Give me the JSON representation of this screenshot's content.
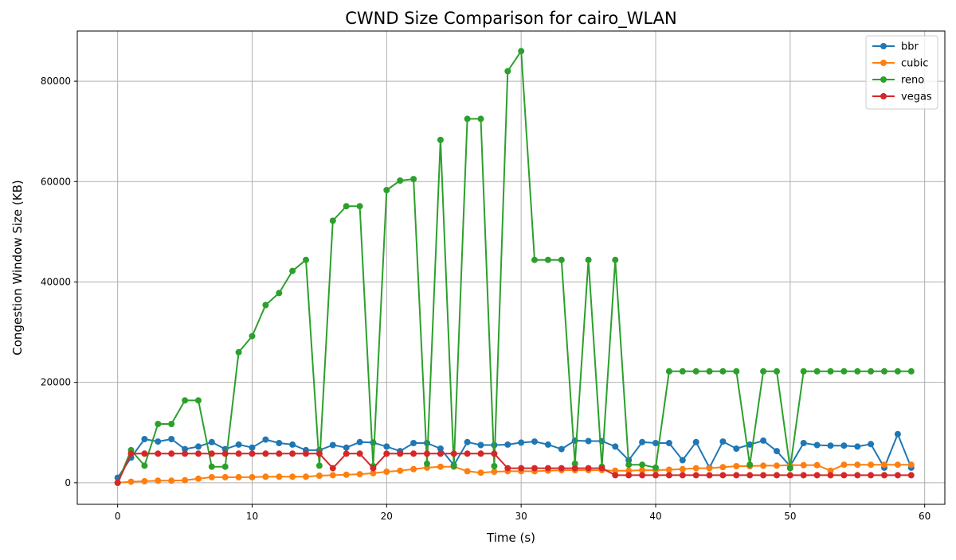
{
  "chart_data": {
    "type": "line",
    "title": "CWND Size Comparison for cairo_WLAN",
    "xlabel": "Time (s)",
    "ylabel": "Congestion Window Size (KB)",
    "xlim": [
      -3,
      61.5
    ],
    "ylim": [
      -4300,
      90000
    ],
    "xticks": [
      0,
      10,
      20,
      30,
      40,
      50,
      60
    ],
    "xtick_labels": [
      "0",
      "10",
      "20",
      "30",
      "40",
      "50",
      "60"
    ],
    "yticks": [
      0,
      20000,
      40000,
      60000,
      80000
    ],
    "ytick_labels": [
      "0",
      "20000",
      "40000",
      "60000",
      "80000"
    ],
    "grid": true,
    "legend_position": "top-right",
    "markers": true,
    "x": [
      0,
      1,
      2,
      3,
      4,
      5,
      6,
      7,
      8,
      9,
      10,
      11,
      12,
      13,
      14,
      15,
      16,
      17,
      18,
      19,
      20,
      21,
      22,
      23,
      24,
      25,
      26,
      27,
      28,
      29,
      30,
      31,
      32,
      33,
      34,
      35,
      36,
      37,
      38,
      39,
      40,
      41,
      42,
      43,
      44,
      45,
      46,
      47,
      48,
      49,
      50,
      51,
      52,
      53,
      54,
      55,
      56,
      57,
      58,
      59
    ],
    "series": [
      {
        "name": "bbr",
        "color": "#1f77b4",
        "values": [
          1000,
          5000,
          8700,
          8200,
          8700,
          6700,
          7200,
          8100,
          6700,
          7600,
          7000,
          8600,
          7900,
          7600,
          6500,
          6500,
          7500,
          7000,
          8100,
          8000,
          7200,
          6300,
          7900,
          7900,
          6800,
          3500,
          8100,
          7500,
          7500,
          7600,
          8000,
          8200,
          7600,
          6700,
          8400,
          8300,
          8300,
          7200,
          4500,
          8100,
          7900,
          7900,
          4500,
          8100,
          3000,
          8200,
          6800,
          7600,
          8400,
          6300,
          3300,
          7900,
          7500,
          7400,
          7400,
          7200,
          7700,
          3000,
          9700,
          3000
        ]
      },
      {
        "name": "cubic",
        "color": "#ff7f0e",
        "values": [
          0,
          200,
          300,
          400,
          400,
          500,
          800,
          1100,
          1100,
          1100,
          1100,
          1200,
          1200,
          1200,
          1200,
          1400,
          1500,
          1600,
          1700,
          1900,
          2200,
          2400,
          2700,
          3000,
          3200,
          3200,
          2300,
          2000,
          2200,
          2300,
          2300,
          2300,
          2400,
          2500,
          2500,
          2500,
          2500,
          2400,
          2400,
          2500,
          2500,
          2600,
          2700,
          2900,
          2900,
          3100,
          3300,
          3300,
          3400,
          3400,
          3500,
          3500,
          3500,
          2400,
          3600,
          3600,
          3600,
          3600,
          3600,
          3600
        ]
      },
      {
        "name": "reno",
        "color": "#2ca02c",
        "values": [
          0,
          6500,
          3400,
          11700,
          11700,
          16400,
          16400,
          3200,
          3200,
          26000,
          29200,
          35400,
          37800,
          42200,
          44400,
          3400,
          52200,
          55100,
          55100,
          3300,
          58300,
          60200,
          60500,
          3800,
          68300,
          3300,
          72500,
          72500,
          3300,
          82000,
          86000,
          44400,
          44400,
          44400,
          3800,
          44400,
          3200,
          44400,
          3600,
          3600,
          3000,
          22200,
          22200,
          22200,
          22200,
          22200,
          22200,
          3600,
          22200,
          22200,
          2900,
          22200,
          22200,
          22200,
          22200,
          22200,
          22200,
          22200,
          22200,
          22200
        ]
      },
      {
        "name": "vegas",
        "color": "#d62728",
        "values": [
          0,
          5800,
          5800,
          5800,
          5800,
          5800,
          5800,
          5800,
          5800,
          5800,
          5800,
          5800,
          5800,
          5800,
          5800,
          5800,
          2900,
          5800,
          5800,
          2900,
          5800,
          5800,
          5800,
          5800,
          5800,
          5800,
          5800,
          5800,
          5800,
          2900,
          2900,
          2900,
          2900,
          2900,
          2900,
          2900,
          2900,
          1500,
          1500,
          1500,
          1500,
          1500,
          1500,
          1500,
          1500,
          1500,
          1500,
          1500,
          1500,
          1500,
          1500,
          1500,
          1500,
          1500,
          1500,
          1500,
          1500,
          1500,
          1500,
          1500
        ]
      }
    ]
  }
}
